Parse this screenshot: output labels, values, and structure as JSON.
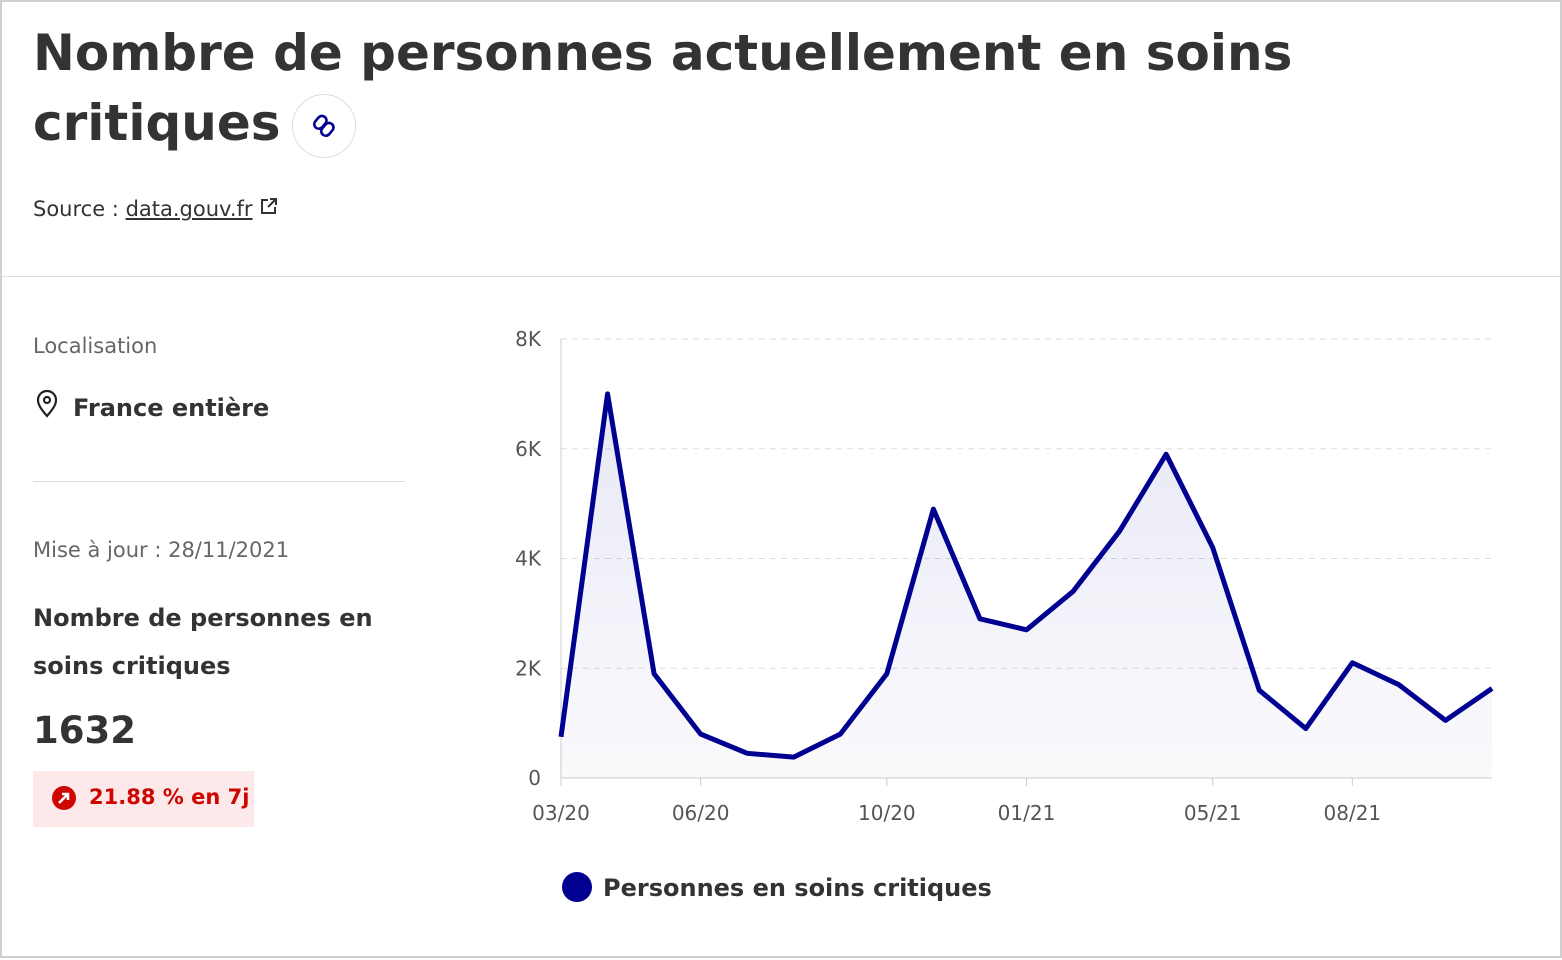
{
  "header": {
    "title": "Nombre de personnes actuellement en soins critiques",
    "source_label": "Source :",
    "source_link": "data.gouv.fr"
  },
  "panel": {
    "location_label": "Localisation",
    "location": "France entière",
    "update": "Mise à jour : 28/11/2021",
    "metric_label": "Nombre de personnes en soins critiques",
    "metric_value": "1632",
    "change": "21.88 % en 7j"
  },
  "chart_data": {
    "type": "line",
    "x": [
      "03/20",
      "04/20",
      "05/20",
      "06/20",
      "07/20",
      "08/20",
      "09/20",
      "10/20",
      "11/20",
      "12/20",
      "01/21",
      "02/21",
      "03/21",
      "04/21",
      "05/21",
      "06/21",
      "07/21",
      "08/21",
      "09/21",
      "10/21",
      "11/21"
    ],
    "series": [
      {
        "name": "Personnes en soins critiques",
        "color": "#000091",
        "values": [
          750,
          7000,
          1900,
          800,
          450,
          380,
          800,
          1900,
          4900,
          2900,
          2700,
          3400,
          4500,
          5900,
          4200,
          1600,
          900,
          2100,
          1700,
          1050,
          1632
        ]
      }
    ],
    "ylim": [
      0,
      8000
    ],
    "yticks": [
      0,
      {
        "value": 2000,
        "label": "2K"
      },
      {
        "value": 4000,
        "label": "4K"
      },
      {
        "value": 6000,
        "label": "6K"
      },
      {
        "value": 8000,
        "label": "8K"
      }
    ],
    "xticks": [
      "03/20",
      "06/20",
      "10/20",
      "01/21",
      "05/21",
      "08/21"
    ],
    "grid": true
  }
}
